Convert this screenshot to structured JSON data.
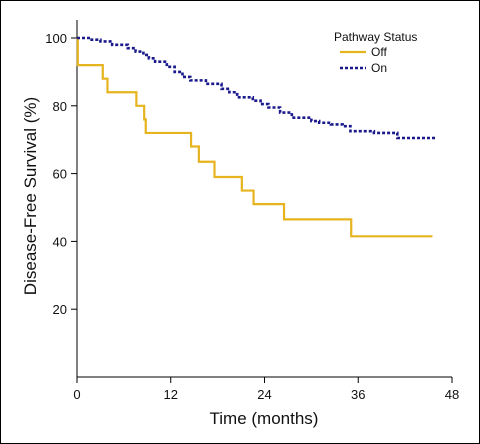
{
  "chart_data": {
    "type": "line",
    "step": true,
    "xlabel": "Time (months)",
    "ylabel": "Disease-Free Survival (%)",
    "xlim": [
      0,
      48
    ],
    "ylim": [
      0,
      100
    ],
    "xticks": [
      0,
      12,
      24,
      36,
      48
    ],
    "yticks": [
      20,
      40,
      60,
      80,
      100
    ],
    "grid": false,
    "legend": {
      "title": "Pathway Status",
      "placement": "top-right"
    },
    "series": [
      {
        "name": "Off",
        "color": "#e6b41e",
        "line_style": "solid",
        "x": [
          0,
          0.1,
          3.3,
          3.9,
          7.6,
          8.6,
          8.8,
          14.6,
          15.6,
          17.6,
          21.1,
          22.6,
          26.5,
          35.1,
          45.5
        ],
        "y": [
          100,
          92,
          88,
          84,
          80,
          76,
          72,
          68,
          63.5,
          59,
          55,
          51,
          46.5,
          41.5,
          41.5
        ]
      },
      {
        "name": "On",
        "color": "#1a1a8c",
        "line_style": "dashed",
        "x": [
          0,
          1.5,
          3,
          4.5,
          6.5,
          7.5,
          8.5,
          9.2,
          10,
          11.5,
          12.5,
          13.5,
          14.5,
          16.5,
          18.5,
          19.5,
          20.5,
          22.5,
          23.5,
          24.5,
          26,
          27.5,
          30,
          31,
          32.5,
          34,
          35,
          38,
          38.5,
          41,
          46
        ],
        "y": [
          100,
          99.5,
          99,
          98,
          97,
          96,
          95,
          94,
          93,
          91.5,
          90,
          88.5,
          87.5,
          86.5,
          85,
          84,
          82.5,
          81.5,
          80.5,
          79.5,
          78,
          76.5,
          75.5,
          75,
          74.5,
          74,
          72.5,
          72,
          72,
          70.5,
          70.5
        ]
      }
    ]
  }
}
